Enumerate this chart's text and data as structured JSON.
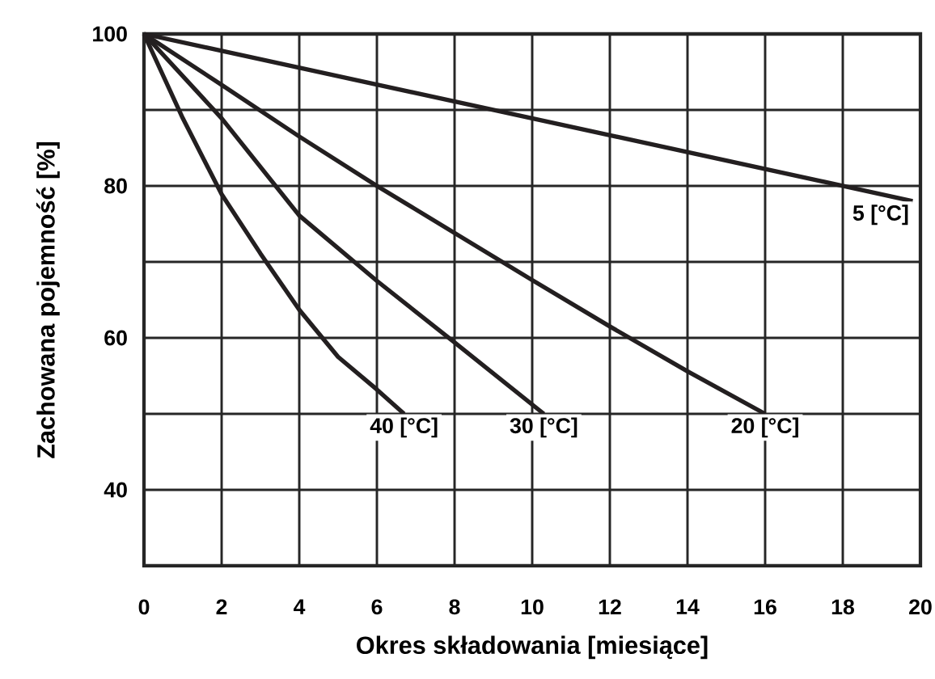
{
  "chart_data": {
    "type": "line",
    "xlabel": "Okres składowania [miesiące]",
    "ylabel": "Zachowana pojemność [%]",
    "xlim": [
      0,
      20
    ],
    "ylim": [
      30,
      100
    ],
    "xticks": [
      0,
      2,
      4,
      6,
      8,
      10,
      12,
      14,
      16,
      18,
      20
    ],
    "yticks": [
      40,
      {
        "value": 50,
        "label": null
      },
      60,
      {
        "value": 70,
        "label": null
      },
      80,
      {
        "value": 90,
        "label": null
      },
      100
    ],
    "grid": true,
    "legend": false,
    "marker": "none",
    "line_style": "solid",
    "series": [
      {
        "name": "5 [°C]",
        "color": "#231f20",
        "x": [
          0,
          19.8
        ],
        "values": [
          100,
          78
        ]
      },
      {
        "name": "20 [°C]",
        "color": "#231f20",
        "x": [
          0,
          2,
          4,
          6,
          8,
          10,
          12,
          14,
          16
        ],
        "values": [
          100,
          93.3,
          86.5,
          80,
          73.8,
          67.6,
          61.5,
          55.6,
          50
        ]
      },
      {
        "name": "30 [°C]",
        "color": "#231f20",
        "x": [
          0,
          2,
          4,
          6,
          8,
          10.3
        ],
        "values": [
          100,
          88.9,
          76.1,
          67.5,
          59.4,
          50
        ]
      },
      {
        "name": "40 [°C]",
        "color": "#231f20",
        "x": [
          0,
          1,
          2,
          3,
          4,
          5,
          6,
          6.7
        ],
        "values": [
          100,
          88.9,
          78.9,
          71.1,
          63.7,
          57.5,
          53.2,
          50
        ]
      }
    ]
  }
}
